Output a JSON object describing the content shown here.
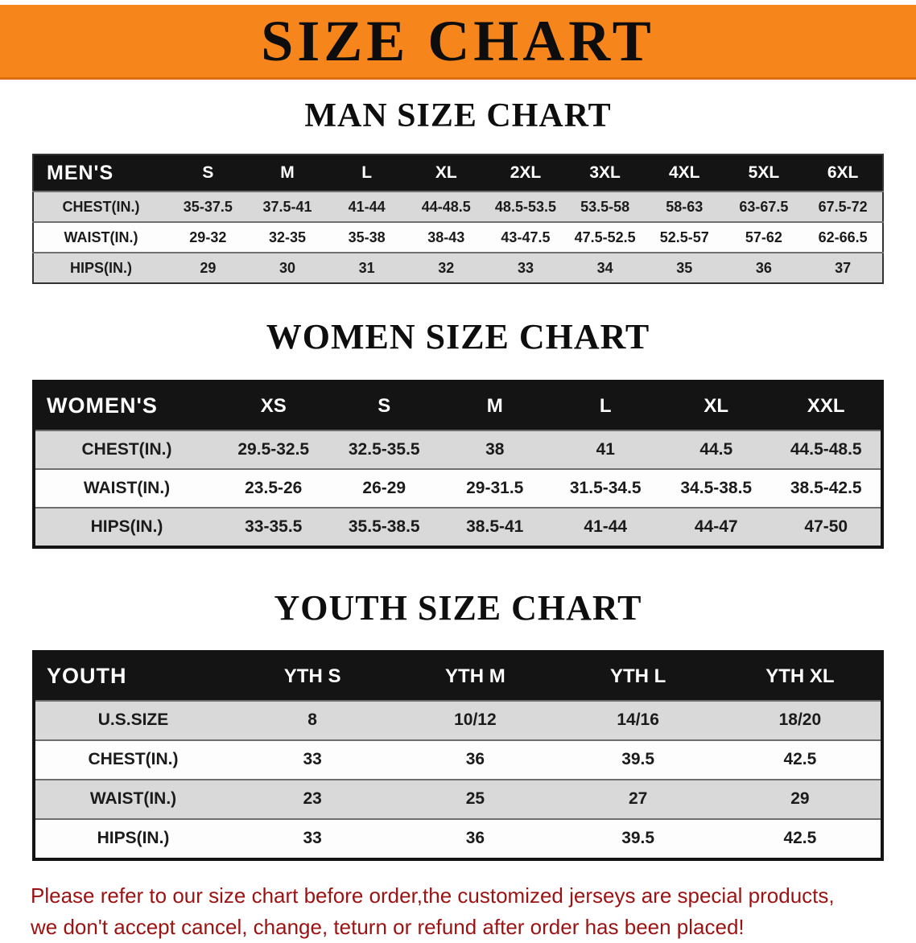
{
  "banner": {
    "title": "SIZE CHART",
    "bg_color": "#f6861c",
    "text_color": "#0d0d0d"
  },
  "men": {
    "heading": "MAN SIZE CHART",
    "table": {
      "header": [
        "MEN'S",
        "S",
        "M",
        "L",
        "XL",
        "2XL",
        "3XL",
        "4XL",
        "5XL",
        "6XL"
      ],
      "rows": [
        [
          "CHEST(IN.)",
          "35-37.5",
          "37.5-41",
          "41-44",
          "44-48.5",
          "48.5-53.5",
          "53.5-58",
          "58-63",
          "63-67.5",
          "67.5-72"
        ],
        [
          "WAIST(IN.)",
          "29-32",
          "32-35",
          "35-38",
          "38-43",
          "43-47.5",
          "47.5-52.5",
          "52.5-57",
          "57-62",
          "62-66.5"
        ],
        [
          "HIPS(IN.)",
          "29",
          "30",
          "31",
          "32",
          "33",
          "34",
          "35",
          "36",
          "37"
        ]
      ]
    }
  },
  "women": {
    "heading": "WOMEN SIZE CHART",
    "table": {
      "header": [
        "WOMEN'S",
        "XS",
        "S",
        "M",
        "L",
        "XL",
        "XXL"
      ],
      "rows": [
        [
          "CHEST(IN.)",
          "29.5-32.5",
          "32.5-35.5",
          "38",
          "41",
          "44.5",
          "44.5-48.5"
        ],
        [
          "WAIST(IN.)",
          "23.5-26",
          "26-29",
          "29-31.5",
          "31.5-34.5",
          "34.5-38.5",
          "38.5-42.5"
        ],
        [
          "HIPS(IN.)",
          "33-35.5",
          "35.5-38.5",
          "38.5-41",
          "41-44",
          "44-47",
          "47-50"
        ]
      ]
    }
  },
  "youth": {
    "heading": "YOUTH SIZE CHART",
    "table": {
      "header": [
        "YOUTH",
        "YTH S",
        "YTH M",
        "YTH L",
        "YTH XL"
      ],
      "rows": [
        [
          "U.S.SIZE",
          "8",
          "10/12",
          "14/16",
          "18/20"
        ],
        [
          "CHEST(IN.)",
          "33",
          "36",
          "39.5",
          "42.5"
        ],
        [
          "WAIST(IN.)",
          "23",
          "25",
          "27",
          "29"
        ],
        [
          "HIPS(IN.)",
          "33",
          "36",
          "39.5",
          "42.5"
        ]
      ]
    }
  },
  "footer": {
    "color": "#9c1212",
    "lines": [
      "Please refer to our size chart before order,the customized jerseys are special products,",
      "we don't accept cancel, change, teturn or refund after order has been placed!"
    ]
  }
}
